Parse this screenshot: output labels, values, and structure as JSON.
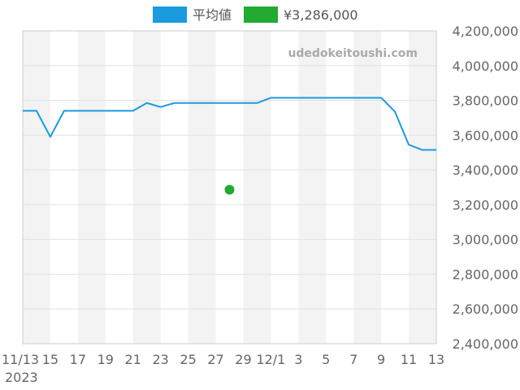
{
  "chart_data": {
    "type": "line",
    "x_tick_labels": [
      "11/13",
      "15",
      "17",
      "19",
      "21",
      "23",
      "25",
      "27",
      "29",
      "12/1",
      "3",
      "5",
      "7",
      "9",
      "11",
      "13"
    ],
    "x_year_label": "2023",
    "y_tick_labels": [
      "2,400,000",
      "2,600,000",
      "2,800,000",
      "3,000,000",
      "3,200,000",
      "3,400,000",
      "3,600,000",
      "3,800,000",
      "4,000,000",
      "4,200,000"
    ],
    "ylim": [
      2400000,
      4200000
    ],
    "watermark": "udedokeitoushi.com",
    "grid": true,
    "legend_position": "top",
    "series": [
      {
        "name": "平均値",
        "color": "#1a9be0",
        "type": "line",
        "points": [
          {
            "x": "2023-11-13",
            "y": 3740000
          },
          {
            "x": "2023-11-14",
            "y": 3740000
          },
          {
            "x": "2023-11-15",
            "y": 3590000
          },
          {
            "x": "2023-11-16",
            "y": 3740000
          },
          {
            "x": "2023-11-17",
            "y": 3740000
          },
          {
            "x": "2023-11-18",
            "y": 3740000
          },
          {
            "x": "2023-11-19",
            "y": 3740000
          },
          {
            "x": "2023-11-20",
            "y": 3740000
          },
          {
            "x": "2023-11-21",
            "y": 3740000
          },
          {
            "x": "2023-11-22",
            "y": 3785000
          },
          {
            "x": "2023-11-23",
            "y": 3762000
          },
          {
            "x": "2023-11-24",
            "y": 3785000
          },
          {
            "x": "2023-11-25",
            "y": 3785000
          },
          {
            "x": "2023-11-26",
            "y": 3785000
          },
          {
            "x": "2023-11-27",
            "y": 3785000
          },
          {
            "x": "2023-11-28",
            "y": 3785000
          },
          {
            "x": "2023-11-29",
            "y": 3785000
          },
          {
            "x": "2023-11-30",
            "y": 3785000
          },
          {
            "x": "2023-12-01",
            "y": 3815000
          },
          {
            "x": "2023-12-02",
            "y": 3815000
          },
          {
            "x": "2023-12-03",
            "y": 3815000
          },
          {
            "x": "2023-12-04",
            "y": 3815000
          },
          {
            "x": "2023-12-05",
            "y": 3815000
          },
          {
            "x": "2023-12-06",
            "y": 3815000
          },
          {
            "x": "2023-12-07",
            "y": 3815000
          },
          {
            "x": "2023-12-08",
            "y": 3815000
          },
          {
            "x": "2023-12-09",
            "y": 3815000
          },
          {
            "x": "2023-12-10",
            "y": 3735000
          },
          {
            "x": "2023-12-11",
            "y": 3545000
          },
          {
            "x": "2023-12-12",
            "y": 3515000
          },
          {
            "x": "2023-12-13",
            "y": 3515000
          }
        ]
      },
      {
        "name": "¥3,286,000",
        "color": "#22aa33",
        "type": "scatter",
        "points": [
          {
            "x": "2023-11-28",
            "y": 3286000
          }
        ]
      }
    ]
  }
}
